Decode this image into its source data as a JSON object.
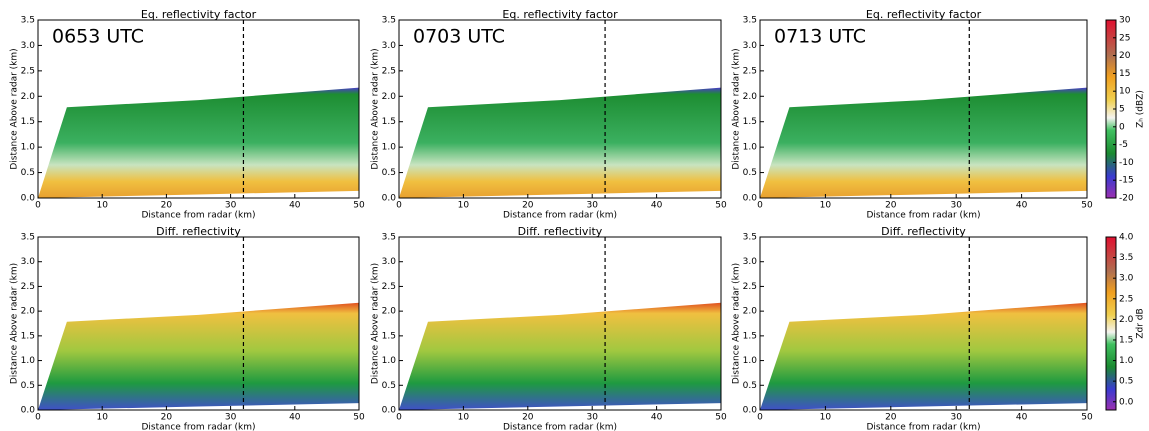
{
  "chart_data": [
    {
      "type": "rhi",
      "title": "Eq. reflectivity factor",
      "annotation": "0653 UTC",
      "xlabel": "Distance from radar (km)",
      "ylabel": "Distance Above radar  (km)",
      "xlim": [
        0,
        50
      ],
      "ylim": [
        0,
        3.5
      ],
      "xticks": [
        0,
        10,
        20,
        30,
        40,
        50
      ],
      "yticks": [
        {
          "value": 0,
          "label": "0.0"
        },
        {
          "value": 0.5,
          "label": "0.5"
        },
        {
          "value": 1,
          "label": "1.0"
        },
        {
          "value": 1.5,
          "label": "1.5"
        },
        {
          "value": 2,
          "label": "2.0"
        },
        {
          "value": 2.5,
          "label": "2.5"
        },
        {
          "value": 3,
          "label": "3.0"
        },
        {
          "value": 3.5,
          "label": "3.5"
        }
      ],
      "vline": 32
    },
    {
      "type": "rhi",
      "title": "Eq. reflectivity factor",
      "annotation": "0703 UTC",
      "xlabel": "Distance from radar (km)",
      "ylabel": "Distance Above radar  (km)",
      "xlim": [
        0,
        50
      ],
      "ylim": [
        0,
        3.5
      ],
      "xticks": [
        0,
        10,
        20,
        30,
        40,
        50
      ],
      "yticks": [
        {
          "value": 0,
          "label": "0.0"
        },
        {
          "value": 0.5,
          "label": "0.5"
        },
        {
          "value": 1,
          "label": "1.0"
        },
        {
          "value": 1.5,
          "label": "1.5"
        },
        {
          "value": 2,
          "label": "2.0"
        },
        {
          "value": 2.5,
          "label": "2.5"
        },
        {
          "value": 3,
          "label": "3.0"
        },
        {
          "value": 3.5,
          "label": "3.5"
        }
      ],
      "vline": 32
    },
    {
      "type": "rhi",
      "title": "Eq. reflectivity factor",
      "annotation": "0713 UTC",
      "xlabel": "Distance from radar (km)",
      "ylabel": "Distance Above radar  (km)",
      "xlim": [
        0,
        50
      ],
      "ylim": [
        0,
        3.5
      ],
      "xticks": [
        0,
        10,
        20,
        30,
        40,
        50
      ],
      "yticks": [
        {
          "value": 0,
          "label": "0.0"
        },
        {
          "value": 0.5,
          "label": "0.5"
        },
        {
          "value": 1,
          "label": "1.0"
        },
        {
          "value": 1.5,
          "label": "1.5"
        },
        {
          "value": 2,
          "label": "2.0"
        },
        {
          "value": 2.5,
          "label": "2.5"
        },
        {
          "value": 3,
          "label": "3.0"
        },
        {
          "value": 3.5,
          "label": "3.5"
        }
      ],
      "vline": 32
    },
    {
      "type": "rhi",
      "title": "Diff. reflectivity",
      "xlabel": "Distance from radar (km)",
      "ylabel": "Distance Above radar  (km)",
      "xlim": [
        0,
        50
      ],
      "ylim": [
        0,
        3.5
      ],
      "xticks": [
        0,
        10,
        20,
        30,
        40,
        50
      ],
      "yticks": [
        {
          "value": 0,
          "label": "0.0"
        },
        {
          "value": 0.5,
          "label": "0.5"
        },
        {
          "value": 1,
          "label": "1.0"
        },
        {
          "value": 1.5,
          "label": "1.5"
        },
        {
          "value": 2,
          "label": "2.0"
        },
        {
          "value": 2.5,
          "label": "2.5"
        },
        {
          "value": 3,
          "label": "3.0"
        },
        {
          "value": 3.5,
          "label": "3.5"
        }
      ],
      "vline": 32
    },
    {
      "type": "rhi",
      "title": "Diff. reflectivity",
      "xlabel": "Distance from radar (km)",
      "ylabel": "Distance Above radar  (km)",
      "xlim": [
        0,
        50
      ],
      "ylim": [
        0,
        3.5
      ],
      "xticks": [
        0,
        10,
        20,
        30,
        40,
        50
      ],
      "yticks": [
        {
          "value": 0,
          "label": "0.0"
        },
        {
          "value": 0.5,
          "label": "0.5"
        },
        {
          "value": 1,
          "label": "1.0"
        },
        {
          "value": 1.5,
          "label": "1.5"
        },
        {
          "value": 2,
          "label": "2.0"
        },
        {
          "value": 2.5,
          "label": "2.5"
        },
        {
          "value": 3,
          "label": "3.0"
        },
        {
          "value": 3.5,
          "label": "3.5"
        }
      ],
      "vline": 32
    },
    {
      "type": "rhi",
      "title": "Diff. reflectivity",
      "xlabel": "Distance from radar (km)",
      "ylabel": "Distance Above radar  (km)",
      "xlim": [
        0,
        50
      ],
      "ylim": [
        0,
        3.5
      ],
      "xticks": [
        0,
        10,
        20,
        30,
        40,
        50
      ],
      "yticks": [
        {
          "value": 0,
          "label": "0.0"
        },
        {
          "value": 0.5,
          "label": "0.5"
        },
        {
          "value": 1,
          "label": "1.0"
        },
        {
          "value": 1.5,
          "label": "1.5"
        },
        {
          "value": 2,
          "label": "2.0"
        },
        {
          "value": 2.5,
          "label": "2.5"
        },
        {
          "value": 3,
          "label": "3.0"
        },
        {
          "value": 3.5,
          "label": "3.5"
        }
      ],
      "vline": 32
    }
  ],
  "colorbars": [
    {
      "label": "Zₕ (dBZ)",
      "ylim": [
        -20,
        30
      ],
      "yticks": [
        -20,
        -15,
        -10,
        -5,
        0,
        5,
        10,
        15,
        20,
        25,
        30
      ]
    },
    {
      "label": "Zdr dB",
      "ylim": [
        -0.2,
        4
      ],
      "yticks": [
        {
          "value": 0,
          "label": "0.0"
        },
        {
          "value": 0.5,
          "label": "0.5"
        },
        {
          "value": 1,
          "label": "1.0"
        },
        {
          "value": 1.5,
          "label": "1.5"
        },
        {
          "value": 2,
          "label": "2.0"
        },
        {
          "value": 2.5,
          "label": "2.5"
        },
        {
          "value": 3,
          "label": "3.0"
        },
        {
          "value": 3.5,
          "label": "3.5"
        },
        {
          "value": 4,
          "label": "4.0"
        }
      ]
    }
  ]
}
